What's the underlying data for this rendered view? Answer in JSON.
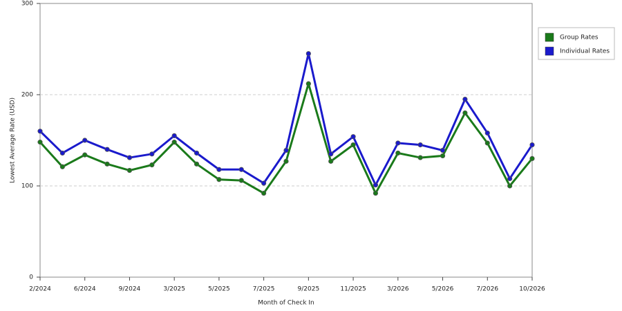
{
  "chart_data": {
    "type": "line",
    "x_label": "Month of Check In",
    "y_label": "Lowest Average Rate (USD)",
    "categories": [
      "2/2024",
      null,
      "6/2024",
      null,
      "9/2024",
      null,
      "3/2025",
      null,
      "5/2025",
      null,
      "7/2025",
      null,
      "9/2025",
      null,
      "11/2025",
      null,
      "3/2026",
      null,
      "5/2026",
      null,
      "7/2026",
      null,
      "10/2026"
    ],
    "series": [
      {
        "name": "Group Rates",
        "color": "#1a7a1a",
        "values": [
          148,
          121,
          134,
          124,
          117,
          123,
          148,
          124,
          107,
          106,
          92,
          127,
          212,
          127,
          145,
          92,
          136,
          131,
          133,
          180,
          147,
          100,
          130
        ]
      },
      {
        "name": "Individual Rates",
        "color": "#1a1acc",
        "values": [
          160,
          136,
          150,
          140,
          131,
          135,
          155,
          136,
          118,
          118,
          103,
          139,
          245,
          135,
          154,
          101,
          147,
          145,
          139,
          195,
          158,
          108,
          145
        ]
      }
    ],
    "ylim": [
      0,
      300
    ],
    "yticks": [
      0,
      100,
      200,
      300
    ],
    "grid": true,
    "legend": "right"
  }
}
